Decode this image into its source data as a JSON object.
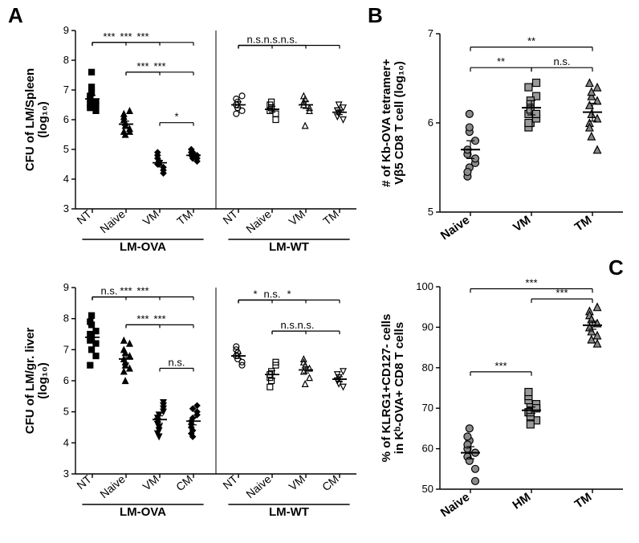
{
  "labels": {
    "A": "A",
    "B": "B",
    "C": "C"
  },
  "colors": {
    "black": "#000000",
    "white": "#ffffff",
    "gray_fill_B_naive": "#8b8b8b",
    "gray_fill_B_vm": "#9a9a9a",
    "gray_fill_B_tm": "#878787",
    "gray_fill_C_naive": "#8b8b8b",
    "gray_fill_C_hm": "#9a9a9a",
    "gray_fill_C_tm": "#878787"
  },
  "panelA": {
    "ylabel_top": "CFU of LM/Spleen\n(log₁₀)",
    "ylabel_bottom": "CFU of LM/gr. liver\n(log₁₀)",
    "xcats": [
      "NT",
      "Naive",
      "VM",
      "TM"
    ],
    "xcats_bottom": [
      "NT",
      "Naive",
      "VM",
      "CM"
    ],
    "group_labels": [
      "LM-OVA",
      "LM-WT"
    ],
    "ylim": [
      3,
      9
    ],
    "ytick_step": 1,
    "spleen": {
      "lm_ova": {
        "NT": {
          "vals": [
            6.8,
            7.1,
            6.5,
            6.4,
            6.9,
            6.6,
            6.7,
            7.6,
            6.3,
            6.5
          ],
          "mean": 6.7,
          "sem": 0.12,
          "filled": true,
          "shape": "square"
        },
        "Naive": {
          "vals": [
            6.1,
            5.8,
            5.6,
            6.2,
            5.9,
            5.7,
            6.0,
            5.5,
            6.3,
            5.6
          ],
          "mean": 5.85,
          "sem": 0.1,
          "filled": true,
          "shape": "triangle"
        },
        "VM": {
          "vals": [
            4.5,
            4.6,
            4.3,
            4.8,
            4.6,
            4.4,
            4.7,
            4.5,
            4.2,
            4.9,
            4.6
          ],
          "mean": 4.55,
          "sem": 0.08,
          "filled": true,
          "shape": "diamond"
        },
        "TM": {
          "vals": [
            4.8,
            4.9,
            4.7,
            5.0,
            4.8,
            4.6,
            4.9,
            4.7,
            4.8
          ],
          "mean": 4.8,
          "sem": 0.05,
          "filled": true,
          "shape": "diamond"
        }
      },
      "lm_wt": {
        "NT": {
          "vals": [
            6.5,
            6.6,
            6.3,
            6.7,
            6.4,
            6.8,
            6.2
          ],
          "mean": 6.5,
          "sem": 0.1,
          "filled": false,
          "shape": "circle"
        },
        "Naive": {
          "vals": [
            6.3,
            6.6,
            6.2,
            6.5,
            6.4,
            6.0
          ],
          "mean": 6.35,
          "sem": 0.1,
          "filled": false,
          "shape": "square"
        },
        "VM": {
          "vals": [
            6.5,
            6.7,
            6.3,
            6.6,
            5.8,
            6.4,
            6.8
          ],
          "mean": 6.5,
          "sem": 0.12,
          "filled": false,
          "shape": "triangle"
        },
        "TM": {
          "vals": [
            6.3,
            6.2,
            6.4,
            6.1,
            6.5,
            6.0,
            6.3
          ],
          "mean": 6.25,
          "sem": 0.08,
          "filled": false,
          "shape": "invtriangle"
        }
      },
      "sig_ova": [
        {
          "from": 0,
          "to": 1,
          "y": 8.6,
          "label": "***"
        },
        {
          "from": 0,
          "to": 2,
          "y": 8.6,
          "label": "***"
        },
        {
          "from": 0,
          "to": 3,
          "y": 8.6,
          "label": "***"
        },
        {
          "from": 1,
          "to": 2,
          "y": 7.6,
          "label": "***"
        },
        {
          "from": 1,
          "to": 3,
          "y": 7.6,
          "label": "***"
        },
        {
          "from": 2,
          "to": 3,
          "y": 5.9,
          "label": "*"
        }
      ],
      "sig_wt": [
        {
          "from": 0,
          "to": 1,
          "y": 8.5,
          "label": "n.s."
        },
        {
          "from": 0,
          "to": 2,
          "y": 8.5,
          "label": "n.s."
        },
        {
          "from": 0,
          "to": 3,
          "y": 8.5,
          "label": "n.s."
        }
      ]
    },
    "liver": {
      "lm_ova": {
        "NT": {
          "vals": [
            7.3,
            8.1,
            6.8,
            7.5,
            7.0,
            7.6,
            6.5,
            7.8,
            7.2,
            7.9,
            7.4
          ],
          "mean": 7.4,
          "sem": 0.15,
          "filled": true,
          "shape": "square"
        },
        "Naive": {
          "vals": [
            6.7,
            6.5,
            7.2,
            6.3,
            6.9,
            6.4,
            7.0,
            6.6,
            6.8,
            7.3,
            6.0
          ],
          "mean": 6.7,
          "sem": 0.13,
          "filled": true,
          "shape": "triangle"
        },
        "VM": {
          "vals": [
            4.8,
            4.5,
            5.0,
            4.3,
            4.9,
            5.2,
            4.6,
            4.2,
            5.1,
            4.7,
            4.4,
            5.3
          ],
          "mean": 4.75,
          "sem": 0.12,
          "filled": true,
          "shape": "invtriangle"
        },
        "CM": {
          "vals": [
            4.6,
            4.4,
            5.0,
            4.3,
            4.8,
            5.2,
            4.5,
            4.2,
            4.9,
            4.7,
            5.1
          ],
          "mean": 4.7,
          "sem": 0.12,
          "filled": true,
          "shape": "diamond"
        }
      },
      "lm_wt": {
        "NT": {
          "vals": [
            6.8,
            6.9,
            6.6,
            7.0,
            6.7,
            6.5,
            7.1
          ],
          "mean": 6.8,
          "sem": 0.08,
          "filled": false,
          "shape": "circle"
        },
        "Naive": {
          "vals": [
            6.2,
            6.0,
            6.5,
            5.8,
            6.3,
            6.6,
            6.1
          ],
          "mean": 6.2,
          "sem": 0.12,
          "filled": false,
          "shape": "square"
        },
        "VM": {
          "vals": [
            6.3,
            6.5,
            6.1,
            6.6,
            5.9,
            6.4,
            6.7
          ],
          "mean": 6.35,
          "sem": 0.1,
          "filled": false,
          "shape": "triangle"
        },
        "CM": {
          "vals": [
            6.0,
            6.1,
            5.8,
            6.2,
            5.9,
            6.3,
            6.0
          ],
          "mean": 6.05,
          "sem": 0.08,
          "filled": false,
          "shape": "invtriangle"
        }
      },
      "sig_ova": [
        {
          "from": 0,
          "to": 1,
          "y": 8.7,
          "label": "n.s."
        },
        {
          "from": 0,
          "to": 2,
          "y": 8.7,
          "label": "***"
        },
        {
          "from": 0,
          "to": 3,
          "y": 8.7,
          "label": "***"
        },
        {
          "from": 1,
          "to": 2,
          "y": 7.8,
          "label": "***"
        },
        {
          "from": 1,
          "to": 3,
          "y": 7.8,
          "label": "***"
        },
        {
          "from": 2,
          "to": 3,
          "y": 6.4,
          "label": "n.s."
        }
      ],
      "sig_wt": [
        {
          "from": 0,
          "to": 1,
          "y": 8.6,
          "label": "*"
        },
        {
          "from": 0,
          "to": 2,
          "y": 8.6,
          "label": "n.s."
        },
        {
          "from": 0,
          "to": 3,
          "y": 8.6,
          "label": "*"
        },
        {
          "from": 1,
          "to": 2,
          "y": 7.6,
          "label": "n.s."
        },
        {
          "from": 1,
          "to": 3,
          "y": 7.6,
          "label": "n.s."
        }
      ]
    }
  },
  "panelB": {
    "ylabel": "# of Kb-OVA tetramer+\nVβ5 CD8 T cell (log₁₀)",
    "xcats": [
      "Naive",
      "VM",
      "TM"
    ],
    "ylim": [
      5,
      7
    ],
    "yticks": [
      5,
      6,
      7
    ],
    "groups": {
      "Naive": {
        "vals": [
          5.65,
          5.5,
          5.8,
          5.4,
          5.9,
          5.55,
          5.7,
          6.1,
          5.6,
          5.45,
          5.95
        ],
        "mean": 5.7,
        "sem": 0.1,
        "shape": "circle",
        "fill": "#8b8b8b"
      },
      "VM": {
        "vals": [
          6.1,
          6.0,
          6.3,
          5.95,
          6.2,
          6.05,
          6.4,
          6.15,
          6.45,
          6.0,
          6.25,
          6.1
        ],
        "mean": 6.17,
        "sem": 0.08,
        "shape": "square",
        "fill": "#9a9a9a"
      },
      "TM": {
        "vals": [
          6.2,
          5.85,
          6.4,
          6.0,
          6.3,
          5.7,
          6.45,
          6.1,
          6.25,
          5.95,
          6.35,
          6.05
        ],
        "mean": 6.12,
        "sem": 0.1,
        "shape": "triangle",
        "fill": "#878787"
      }
    },
    "sig": [
      {
        "from": 0,
        "to": 2,
        "y": 6.85,
        "label": "**"
      },
      {
        "from": 0,
        "to": 1,
        "y": 6.62,
        "label": "**"
      },
      {
        "from": 1,
        "to": 2,
        "y": 6.62,
        "label": "n.s."
      }
    ]
  },
  "panelC": {
    "ylabel": "% of KLRG1+CD127- cells\nin Kᵇ-OVA+ CD8 T cells",
    "xcats": [
      "Naive",
      "HM",
      "TM"
    ],
    "ylim": [
      50,
      100
    ],
    "ytick_step": 10,
    "groups": {
      "Naive": {
        "vals": [
          58,
          62,
          55,
          60,
          65,
          52,
          63,
          57,
          59,
          61
        ],
        "mean": 59,
        "sem": 1.5,
        "shape": "circle",
        "fill": "#8b8b8b"
      },
      "HM": {
        "vals": [
          69,
          71,
          67,
          72,
          66,
          70,
          73,
          68,
          71,
          74,
          69,
          70
        ],
        "mean": 69.5,
        "sem": 0.8,
        "shape": "square",
        "fill": "#9a9a9a"
      },
      "TM": {
        "vals": [
          90,
          92,
          88,
          94,
          89,
          91,
          93,
          87,
          95,
          90,
          92,
          86
        ],
        "mean": 90.5,
        "sem": 1,
        "shape": "triangle",
        "fill": "#878787"
      }
    },
    "sig": [
      {
        "from": 0,
        "to": 2,
        "y": 99.5,
        "label": "***"
      },
      {
        "from": 0,
        "to": 1,
        "y": 79,
        "label": "***"
      },
      {
        "from": 1,
        "to": 2,
        "y": 97,
        "label": "***"
      }
    ]
  }
}
